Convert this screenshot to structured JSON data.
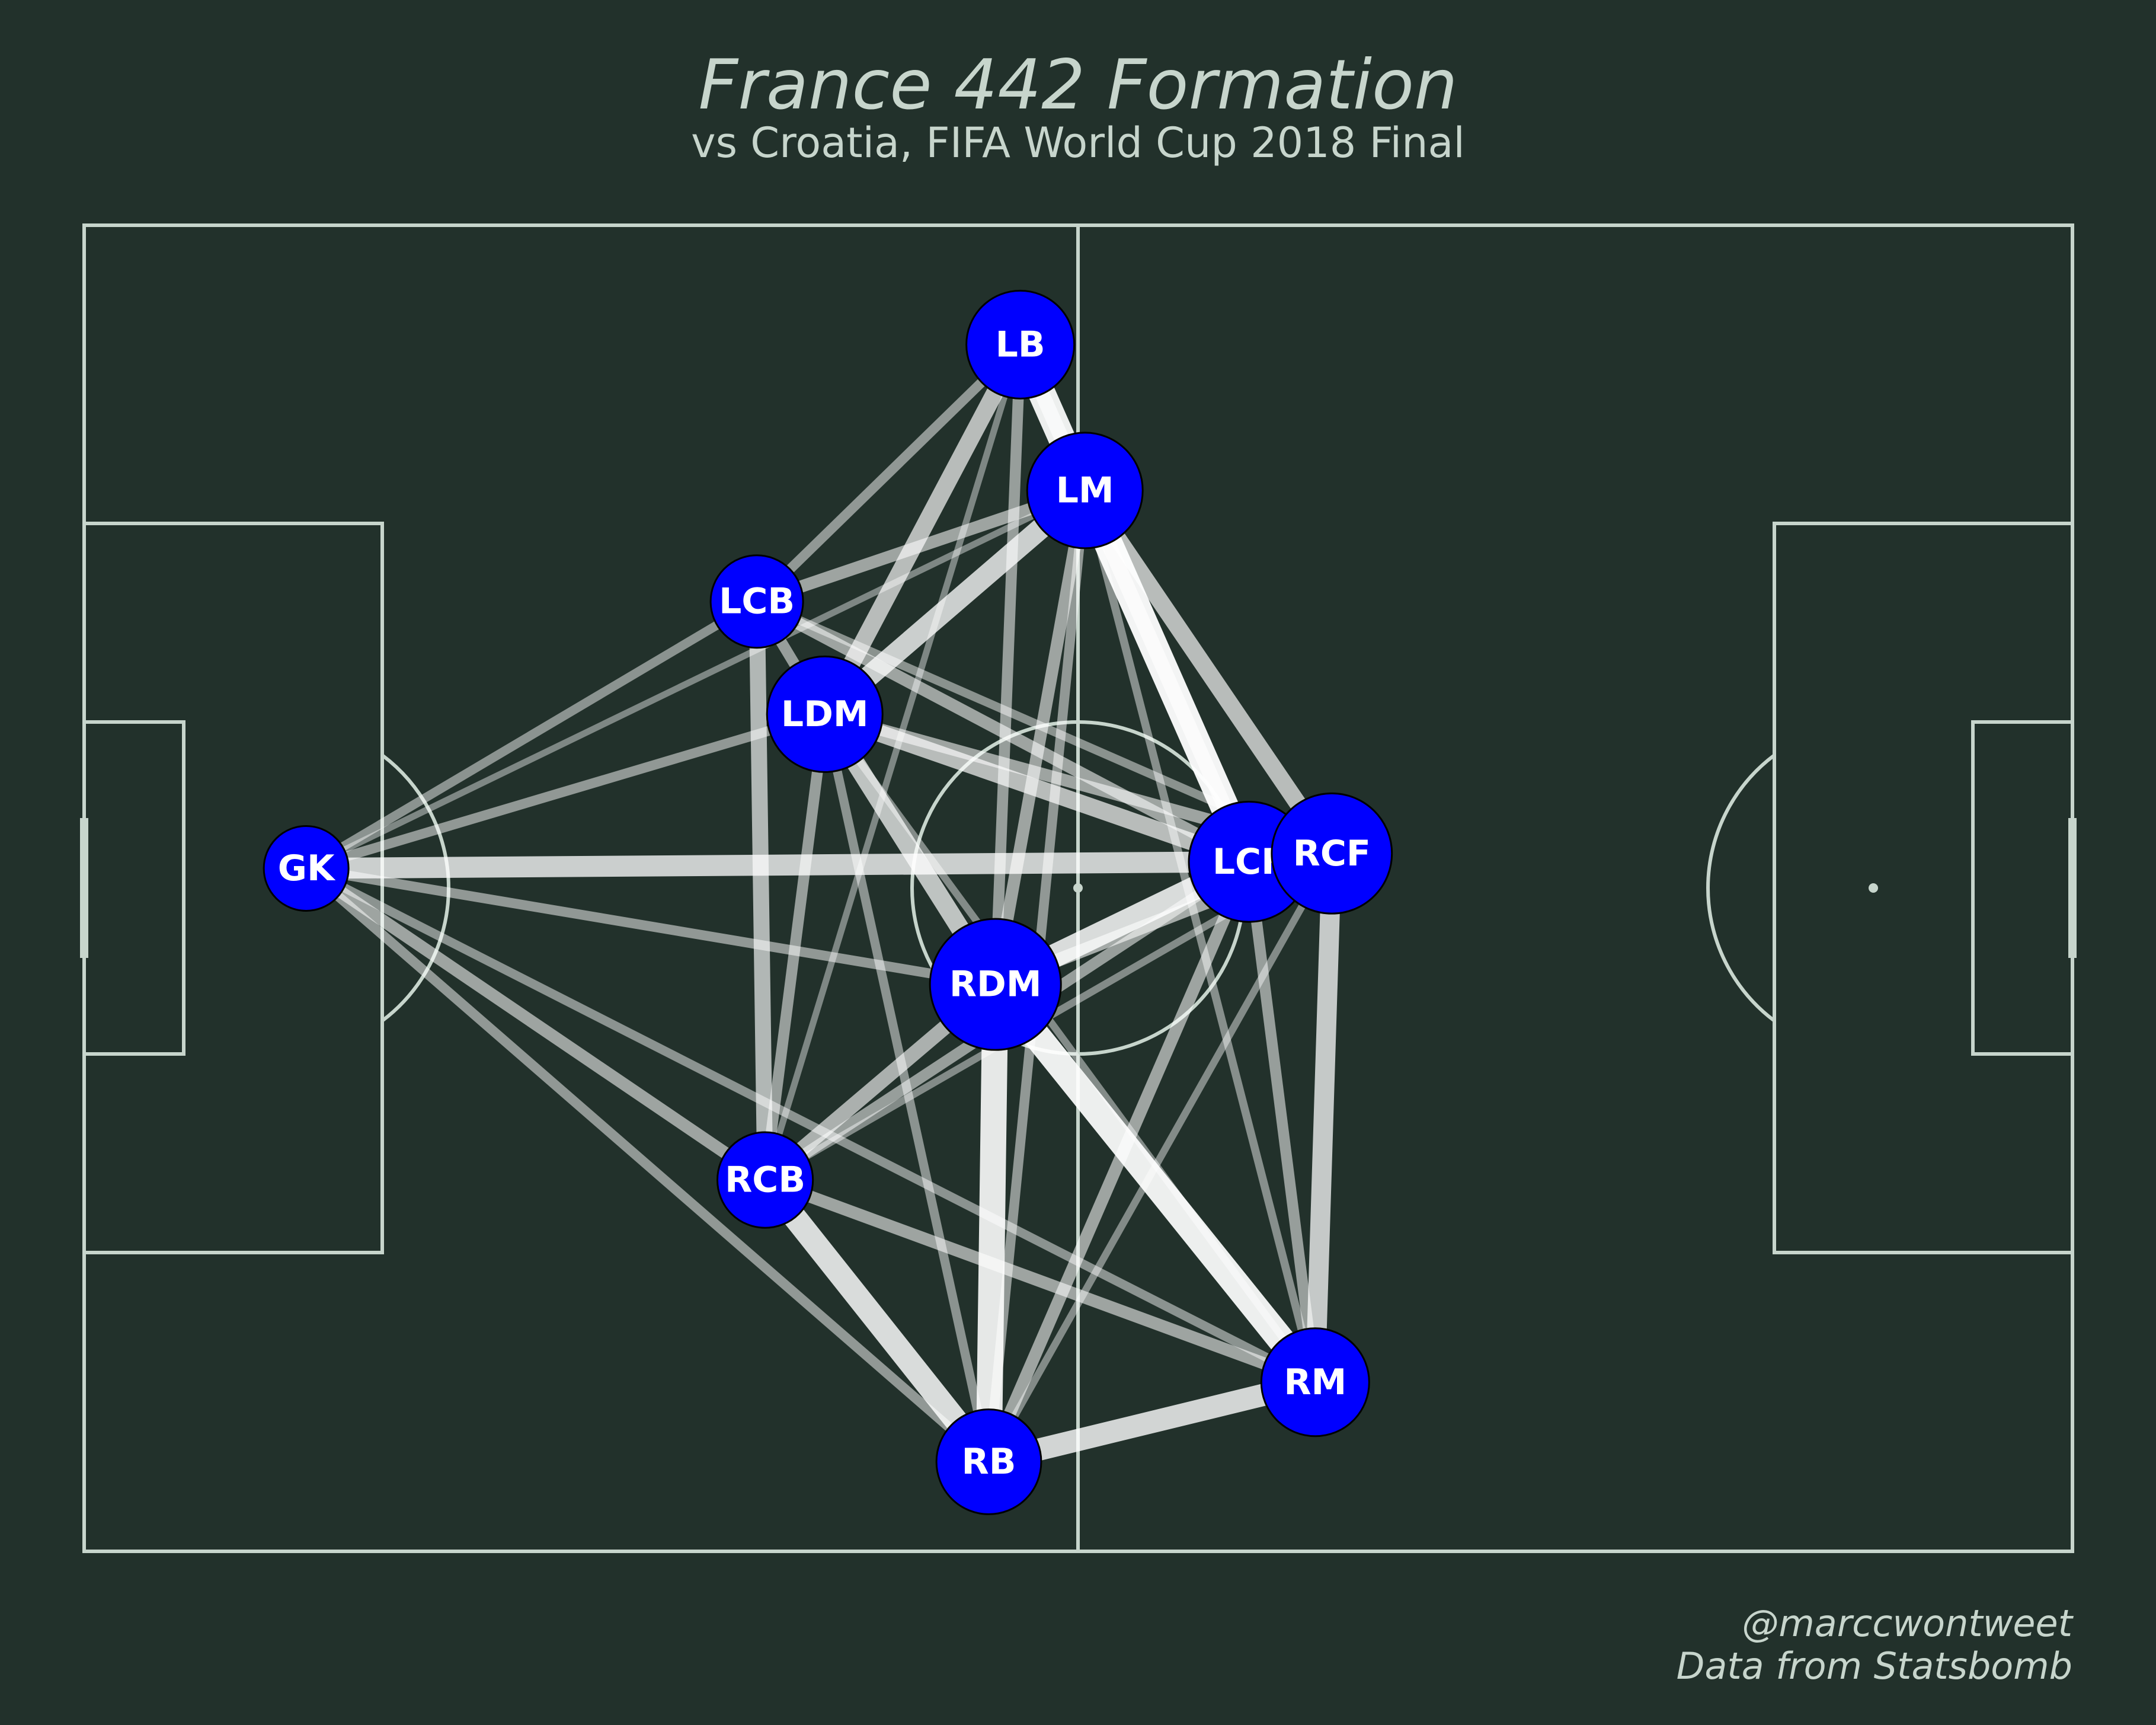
{
  "header": {
    "title": "France 442 Formation",
    "subtitle": "vs Croatia, FIFA World Cup 2018 Final"
  },
  "footer": {
    "credit_handle": "@marccwontweet",
    "credit_source": "Data from Statsbomb"
  },
  "colors": {
    "background": "#22312b",
    "pitch_lines": "#c7d5cc",
    "node_fill": "#0000ff",
    "node_label": "#ffffff",
    "pass_line": "#ffffff"
  },
  "pitch": {
    "length": 120,
    "width": 80
  },
  "network": {
    "players": [
      {
        "id": "GK",
        "label": "GK",
        "x": 13.4,
        "y": 38.8,
        "size": 0.55
      },
      {
        "id": "LB",
        "label": "LB",
        "x": 56.5,
        "y": 7.2,
        "size": 0.7
      },
      {
        "id": "LM",
        "label": "LM",
        "x": 60.4,
        "y": 16.0,
        "size": 0.75
      },
      {
        "id": "LCB",
        "label": "LCB",
        "x": 40.6,
        "y": 22.7,
        "size": 0.6
      },
      {
        "id": "LDM",
        "label": "LDM",
        "x": 44.7,
        "y": 29.5,
        "size": 0.75
      },
      {
        "id": "LCF",
        "label": "LCF",
        "x": 70.3,
        "y": 38.4,
        "size": 0.78
      },
      {
        "id": "RCF",
        "label": "RCF",
        "x": 75.3,
        "y": 37.9,
        "size": 0.78
      },
      {
        "id": "RDM",
        "label": "RDM",
        "x": 55.0,
        "y": 45.8,
        "size": 0.85
      },
      {
        "id": "RCB",
        "label": "RCB",
        "x": 41.1,
        "y": 57.6,
        "size": 0.62
      },
      {
        "id": "RM",
        "label": "RM",
        "x": 74.3,
        "y": 69.8,
        "size": 0.7
      },
      {
        "id": "RB",
        "label": "RB",
        "x": 54.6,
        "y": 74.6,
        "size": 0.68
      }
    ],
    "passes": [
      {
        "from": "LB",
        "to": "LM",
        "count": 0.95
      },
      {
        "from": "LM",
        "to": "LCF",
        "count": 1.0
      },
      {
        "from": "LM",
        "to": "RCF",
        "count": 0.55
      },
      {
        "from": "LB",
        "to": "LCF",
        "count": 0.45
      },
      {
        "from": "LM",
        "to": "LDM",
        "count": 0.7
      },
      {
        "from": "LB",
        "to": "LDM",
        "count": 0.55
      },
      {
        "from": "LB",
        "to": "LCB",
        "count": 0.25
      },
      {
        "from": "LB",
        "to": "RDM",
        "count": 0.3
      },
      {
        "from": "LB",
        "to": "RCB",
        "count": 0.12
      },
      {
        "from": "LM",
        "to": "LCB",
        "count": 0.35
      },
      {
        "from": "LM",
        "to": "RDM",
        "count": 0.35
      },
      {
        "from": "LM",
        "to": "RB",
        "count": 0.25
      },
      {
        "from": "LM",
        "to": "RM",
        "count": 0.18
      },
      {
        "from": "LCB",
        "to": "LDM",
        "count": 0.3
      },
      {
        "from": "LCB",
        "to": "RCB",
        "count": 0.5
      },
      {
        "from": "LCB",
        "to": "LCF",
        "count": 0.35
      },
      {
        "from": "LCB",
        "to": "RCF",
        "count": 0.2
      },
      {
        "from": "LCB",
        "to": "GK",
        "count": 0.22
      },
      {
        "from": "LDM",
        "to": "RDM",
        "count": 0.6
      },
      {
        "from": "LDM",
        "to": "LCF",
        "count": 0.55
      },
      {
        "from": "LDM",
        "to": "RCF",
        "count": 0.35
      },
      {
        "from": "LDM",
        "to": "RCB",
        "count": 0.3
      },
      {
        "from": "LDM",
        "to": "RB",
        "count": 0.22
      },
      {
        "from": "LDM",
        "to": "GK",
        "count": 0.25
      },
      {
        "from": "LDM",
        "to": "RM",
        "count": 0.15
      },
      {
        "from": "GK",
        "to": "LCF",
        "count": 0.7
      },
      {
        "from": "GK",
        "to": "RDM",
        "count": 0.25
      },
      {
        "from": "GK",
        "to": "RCB",
        "count": 0.35
      },
      {
        "from": "GK",
        "to": "RB",
        "count": 0.25
      },
      {
        "from": "GK",
        "to": "RM",
        "count": 0.22
      },
      {
        "from": "GK",
        "to": "LM",
        "count": 0.12
      },
      {
        "from": "RDM",
        "to": "LCF",
        "count": 0.8
      },
      {
        "from": "RDM",
        "to": "RCF",
        "count": 0.4
      },
      {
        "from": "RDM",
        "to": "RM",
        "count": 0.95
      },
      {
        "from": "RDM",
        "to": "RB",
        "count": 0.9
      },
      {
        "from": "RDM",
        "to": "RCB",
        "count": 0.45
      },
      {
        "from": "RCB",
        "to": "RB",
        "count": 0.8
      },
      {
        "from": "RCB",
        "to": "RM",
        "count": 0.35
      },
      {
        "from": "RCB",
        "to": "LCF",
        "count": 0.3
      },
      {
        "from": "RCB",
        "to": "RCF",
        "count": 0.15
      },
      {
        "from": "RB",
        "to": "RM",
        "count": 0.75
      },
      {
        "from": "RB",
        "to": "LCF",
        "count": 0.35
      },
      {
        "from": "RB",
        "to": "RCF",
        "count": 0.15
      },
      {
        "from": "RM",
        "to": "RCF",
        "count": 0.65
      },
      {
        "from": "RM",
        "to": "LCF",
        "count": 0.3
      },
      {
        "from": "LCF",
        "to": "RCF",
        "count": 0.4
      }
    ]
  }
}
